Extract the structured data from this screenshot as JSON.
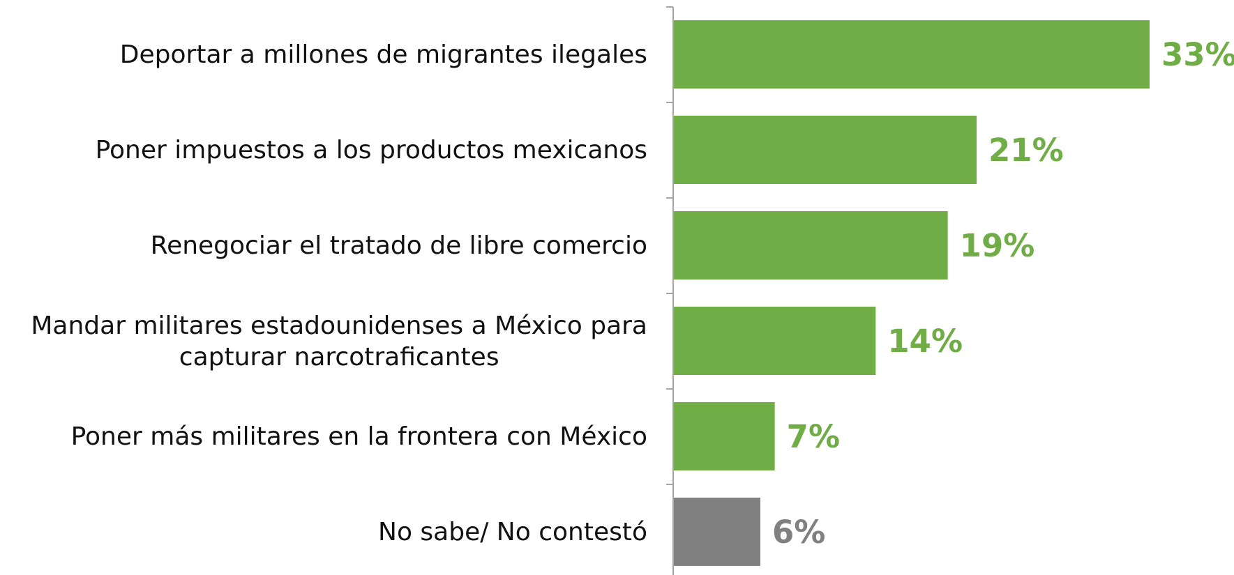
{
  "chart_data": {
    "type": "bar",
    "orientation": "horizontal",
    "categories": [
      [
        "Deportar a millones de migrantes ilegales"
      ],
      [
        "Poner impuestos a los productos mexicanos"
      ],
      [
        "Renegociar el tratado de libre comercio"
      ],
      [
        "Mandar militares estadounidenses a México para",
        "capturar narcotraficantes"
      ],
      [
        "Poner más militares en la frontera con México"
      ],
      [
        "No sabe/ No contestó"
      ]
    ],
    "values": [
      33,
      21,
      19,
      14,
      7,
      6
    ],
    "value_labels": [
      "33%",
      "21%",
      "19%",
      "14%",
      "7%",
      "6%"
    ],
    "colors": [
      "#70ad47",
      "#70ad47",
      "#70ad47",
      "#70ad47",
      "#70ad47",
      "#808080"
    ],
    "title": "",
    "xlabel": "",
    "ylabel": "",
    "xlim": [
      0,
      33
    ],
    "grid": false,
    "legend": "none"
  }
}
